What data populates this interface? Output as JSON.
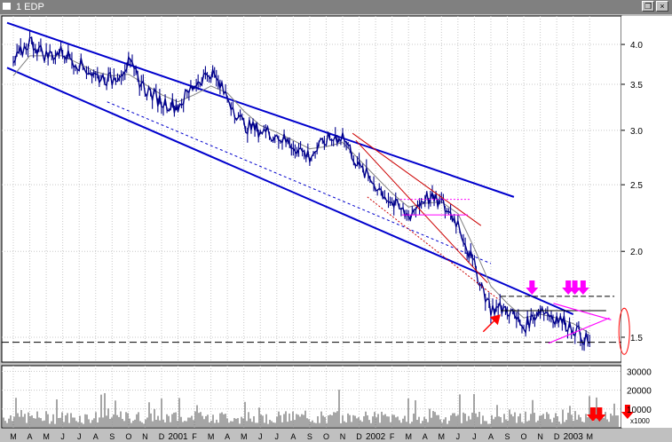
{
  "window": {
    "title": "1 EDP",
    "restore_glyph": "❐",
    "close_glyph": "×"
  },
  "chart_data": {
    "type": "line",
    "title": "",
    "xlabel": "",
    "ylabel": "",
    "y_scale": "log",
    "ylim": [
      1.38,
      4.4
    ],
    "y_ticks": [
      1.5,
      2.0,
      2.5,
      3.0,
      3.5,
      4.0
    ],
    "y_tick_labels": [
      "1.5",
      "2.0",
      "2.5",
      "3.0",
      "3.5",
      "4.0"
    ],
    "x_month_labels": [
      "M",
      "A",
      "M",
      "J",
      "J",
      "A",
      "S",
      "O",
      "N",
      "D",
      "2001",
      "F",
      "M",
      "A",
      "M",
      "J",
      "J",
      "A",
      "S",
      "O",
      "N",
      "D",
      "2002",
      "F",
      "M",
      "A",
      "M",
      "J",
      "J",
      "A",
      "S",
      "O",
      "N",
      "D",
      "2003",
      "M"
    ],
    "grid": true,
    "price_series": {
      "name": "",
      "color": "#00008b",
      "points": [
        [
          0,
          3.75
        ],
        [
          1,
          4.05
        ],
        [
          2,
          3.85
        ],
        [
          3,
          3.9
        ],
        [
          4,
          3.75
        ],
        [
          5,
          3.6
        ],
        [
          6,
          3.55
        ],
        [
          7,
          3.75
        ],
        [
          8,
          3.45
        ],
        [
          9,
          3.3
        ],
        [
          10,
          3.25
        ],
        [
          11,
          3.5
        ],
        [
          12,
          3.65
        ],
        [
          13,
          3.35
        ],
        [
          14,
          3.05
        ],
        [
          15,
          3.0
        ],
        [
          16,
          2.95
        ],
        [
          17,
          2.85
        ],
        [
          18,
          2.75
        ],
        [
          19,
          2.9
        ],
        [
          20,
          2.95
        ],
        [
          21,
          2.65
        ],
        [
          22,
          2.5
        ],
        [
          23,
          2.35
        ],
        [
          24,
          2.25
        ],
        [
          25,
          2.4
        ],
        [
          26,
          2.35
        ],
        [
          27,
          2.2
        ],
        [
          28,
          1.9
        ],
        [
          29,
          1.65
        ],
        [
          30,
          1.65
        ],
        [
          31,
          1.55
        ],
        [
          32,
          1.65
        ],
        [
          33,
          1.6
        ],
        [
          34,
          1.55
        ],
        [
          35,
          1.47
        ]
      ]
    },
    "moving_average": {
      "color": "#808080",
      "points": [
        [
          0,
          3.6
        ],
        [
          1,
          3.85
        ],
        [
          2,
          3.85
        ],
        [
          3,
          3.85
        ],
        [
          4,
          3.75
        ],
        [
          5,
          3.65
        ],
        [
          6,
          3.6
        ],
        [
          7,
          3.62
        ],
        [
          8,
          3.5
        ],
        [
          9,
          3.38
        ],
        [
          10,
          3.3
        ],
        [
          11,
          3.38
        ],
        [
          12,
          3.48
        ],
        [
          13,
          3.4
        ],
        [
          14,
          3.2
        ],
        [
          15,
          3.05
        ],
        [
          16,
          2.98
        ],
        [
          17,
          2.9
        ],
        [
          18,
          2.82
        ],
        [
          19,
          2.84
        ],
        [
          20,
          2.88
        ],
        [
          21,
          2.72
        ],
        [
          22,
          2.57
        ],
        [
          23,
          2.43
        ],
        [
          24,
          2.32
        ],
        [
          25,
          2.35
        ],
        [
          26,
          2.36
        ],
        [
          27,
          2.27
        ],
        [
          28,
          2.02
        ],
        [
          29,
          1.78
        ],
        [
          30,
          1.68
        ],
        [
          31,
          1.6
        ],
        [
          32,
          1.62
        ],
        [
          33,
          1.6
        ],
        [
          34,
          1.57
        ],
        [
          35,
          1.52
        ]
      ]
    },
    "volume": {
      "color": "#808080",
      "y_ticks": [
        10000,
        20000,
        30000
      ],
      "y_tick_labels": [
        "10000",
        "20000",
        "30000"
      ],
      "unit_label": "x1000",
      "ymax": 33000
    },
    "annotations": {
      "channel_color": "#0000cd",
      "trend_color": "#cc0000",
      "highlight_color": "#ff00ff",
      "arrow_color": "#ff0000"
    }
  }
}
